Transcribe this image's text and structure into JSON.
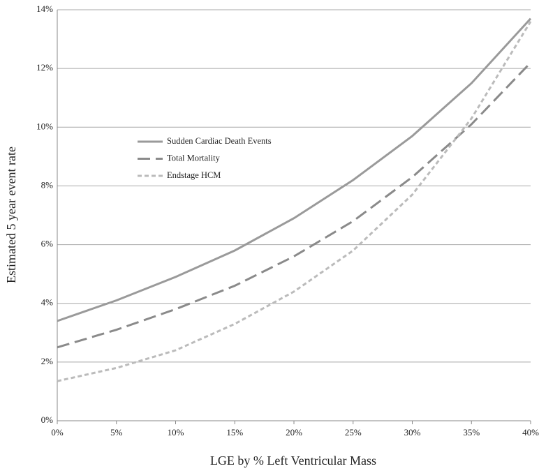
{
  "chart_data": {
    "type": "line",
    "x_label": "LGE by % Left Ventricular Mass",
    "y_label": "Estimated 5 year event rate",
    "x": [
      0,
      5,
      10,
      15,
      20,
      25,
      30,
      35,
      40
    ],
    "series": [
      {
        "name": "Sudden Cardiac Death Events",
        "color": "#9a9a9a",
        "dash": "solid",
        "values": [
          3.4,
          4.1,
          4.9,
          5.8,
          6.9,
          8.2,
          9.7,
          11.5,
          13.7
        ]
      },
      {
        "name": "Total Mortality",
        "color": "#8a8a8a",
        "dash": "long",
        "values": [
          2.5,
          3.1,
          3.8,
          4.6,
          5.6,
          6.8,
          8.3,
          10.1,
          12.2
        ]
      },
      {
        "name": "Endstage HCM",
        "color": "#bbbbbb",
        "dash": "short",
        "values": [
          1.35,
          1.8,
          2.4,
          3.3,
          4.4,
          5.8,
          7.7,
          10.3,
          13.6
        ]
      }
    ],
    "xlim": [
      0,
      40
    ],
    "xticks": [
      {
        "value": 0,
        "label": "0%"
      },
      {
        "value": 5,
        "label": "5%"
      },
      {
        "value": 10,
        "label": "10%"
      },
      {
        "value": 15,
        "label": "15%"
      },
      {
        "value": 20,
        "label": "20%"
      },
      {
        "value": 25,
        "label": "25%"
      },
      {
        "value": 30,
        "label": "30%"
      },
      {
        "value": 35,
        "label": "35%"
      },
      {
        "value": 40,
        "label": "40%"
      }
    ],
    "ylim": [
      0,
      14
    ],
    "yticks": [
      {
        "value": 0,
        "label": "0%"
      },
      {
        "value": 2,
        "label": "2%"
      },
      {
        "value": 4,
        "label": "4%"
      },
      {
        "value": 6,
        "label": "6%"
      },
      {
        "value": 8,
        "label": "8%"
      },
      {
        "value": 10,
        "label": "10%"
      },
      {
        "value": 12,
        "label": "12%"
      },
      {
        "value": 14,
        "label": "14%"
      }
    ],
    "grid": true,
    "legend": "center-left"
  }
}
